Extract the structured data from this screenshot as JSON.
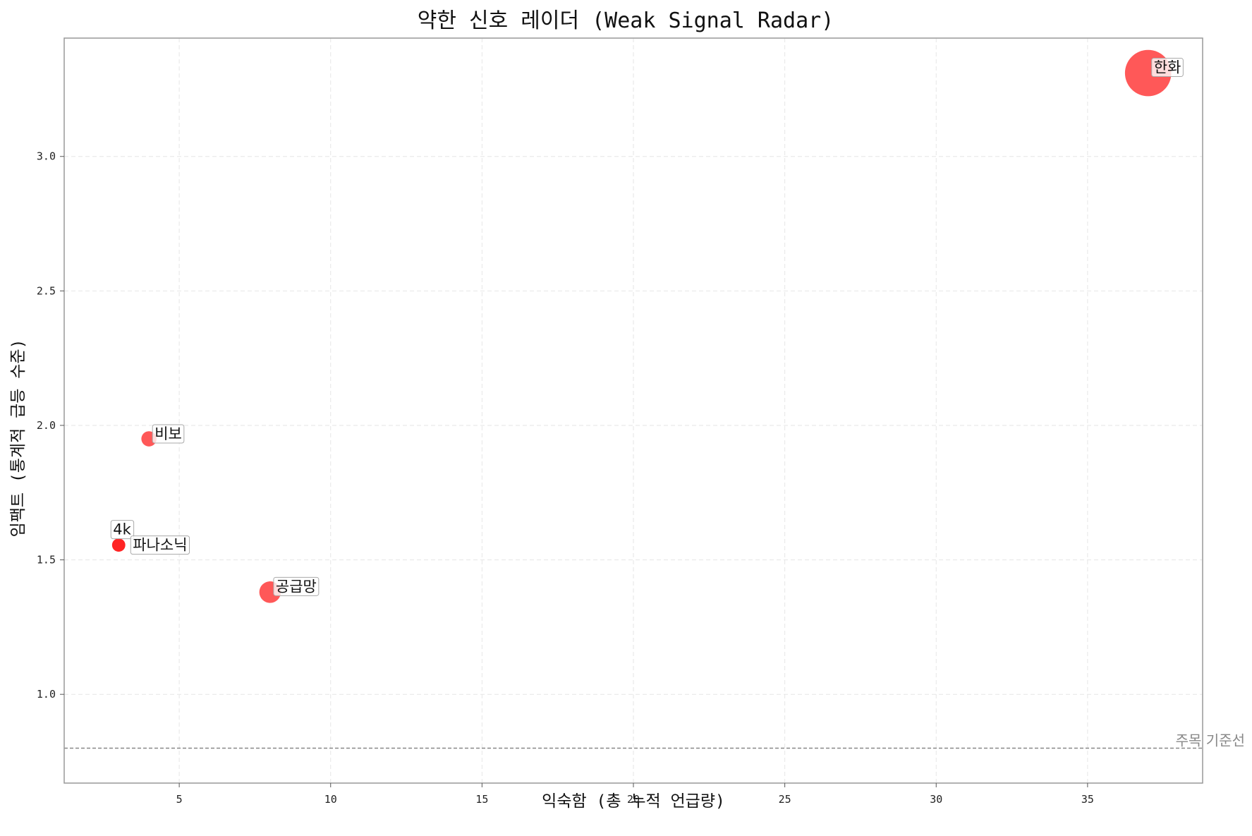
{
  "chart_data": {
    "type": "scatter",
    "title": "약한 신호 레이더 (Weak Signal Radar)",
    "xlabel": "익숙함 (총 누적 언급량)",
    "ylabel": "임팩트 (통계적 급등 수준)",
    "xlim": [
      1.2,
      38.8
    ],
    "ylim": [
      0.67,
      3.44
    ],
    "xticks": [
      5,
      10,
      15,
      20,
      25,
      30,
      35
    ],
    "xtick_labels": [
      "5",
      "10",
      "15",
      "20",
      "25",
      "30",
      "35"
    ],
    "yticks": [
      1.0,
      1.5,
      2.0,
      2.5,
      3.0
    ],
    "ytick_labels": [
      "1.0",
      "1.5",
      "2.0",
      "2.5",
      "3.0"
    ],
    "grid": true,
    "reference_line": {
      "y": 0.8,
      "label": "주목 기준선",
      "color": "#888888"
    },
    "points": [
      {
        "label": "한화",
        "x": 37,
        "y": 3.31,
        "size": 37,
        "color": "#ff3b3b"
      },
      {
        "label": "비보",
        "x": 4,
        "y": 1.95,
        "size": 4,
        "color": "#ff3b3b"
      },
      {
        "label": "4k",
        "x": 3,
        "y": 1.555,
        "size": 3,
        "color": "#ff2020"
      },
      {
        "label": "파나소닉",
        "x": 3,
        "y": 1.555,
        "size": 3,
        "color": "#ff2020"
      },
      {
        "label": "공급망",
        "x": 8,
        "y": 1.38,
        "size": 8,
        "color": "#ff3b3b"
      }
    ]
  }
}
